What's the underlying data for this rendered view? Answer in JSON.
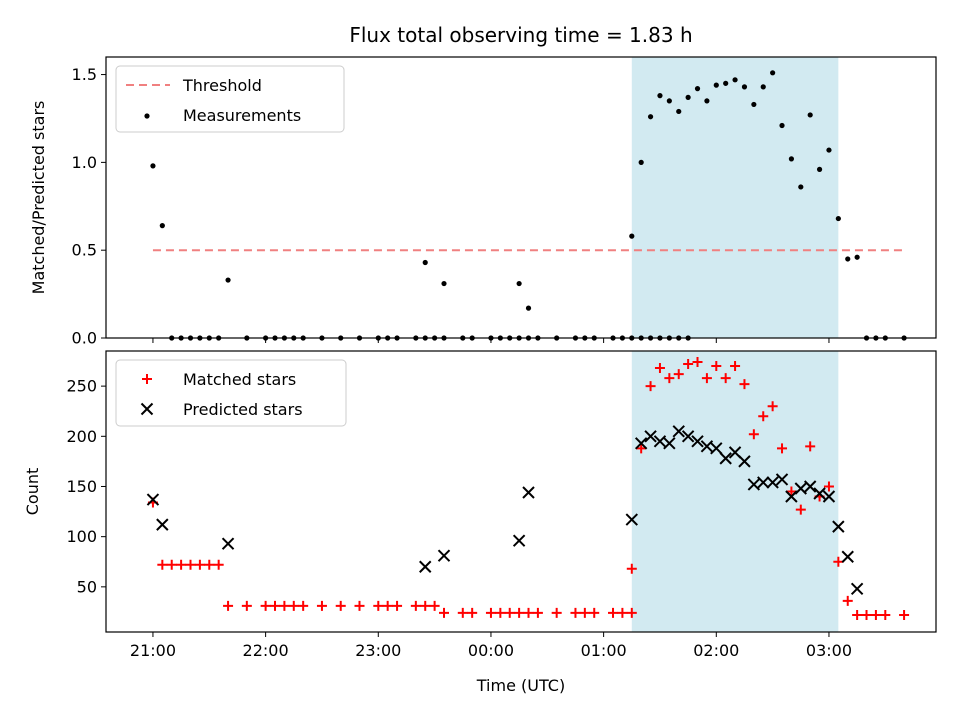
{
  "chart_data": {
    "type": "scatter",
    "title": "Flux total observing time = 1.83 h",
    "colors": {
      "threshold": "#f08080",
      "measurements": "#000000",
      "matched": "#ff0000",
      "predicted": "#000000",
      "span": "#add8e6"
    },
    "shaded_span": [
      "01:15",
      "03:05"
    ],
    "x_range": [
      "20:35",
      "03:57"
    ],
    "x_ticks": [
      "21:00",
      "22:00",
      "23:00",
      "00:00",
      "01:00",
      "02:00",
      "03:00"
    ],
    "x_axis_label": "Time (UTC)",
    "top_panel": {
      "y_axis_label": "Matched/Predicted stars",
      "y_range": [
        0,
        1.6
      ],
      "y_ticks": [
        "0.0",
        "0.5",
        "1.0",
        "1.5"
      ],
      "legend": {
        "position": "upper left",
        "entries": [
          "Threshold",
          "Measurements"
        ]
      },
      "threshold": {
        "name": "Threshold",
        "y": 0.5,
        "x_start": "21:00",
        "x_end": "03:40"
      },
      "measurements": {
        "name": "Measurements",
        "points": [
          [
            "21:00",
            0.98
          ],
          [
            "21:05",
            0.64
          ],
          [
            "21:10",
            0
          ],
          [
            "21:15",
            0
          ],
          [
            "21:20",
            0
          ],
          [
            "21:25",
            0
          ],
          [
            "21:30",
            0
          ],
          [
            "21:35",
            0
          ],
          [
            "21:40",
            0.33
          ],
          [
            "21:50",
            0
          ],
          [
            "22:00",
            0
          ],
          [
            "22:05",
            0
          ],
          [
            "22:10",
            0
          ],
          [
            "22:15",
            0
          ],
          [
            "22:20",
            0
          ],
          [
            "22:30",
            0
          ],
          [
            "22:40",
            0
          ],
          [
            "22:50",
            0
          ],
          [
            "23:00",
            0
          ],
          [
            "23:05",
            0
          ],
          [
            "23:10",
            0
          ],
          [
            "23:20",
            0
          ],
          [
            "23:25",
            0
          ],
          [
            "23:30",
            0
          ],
          [
            "23:35",
            0
          ],
          [
            "23:45",
            0
          ],
          [
            "23:50",
            0
          ],
          [
            "00:00",
            0
          ],
          [
            "00:05",
            0
          ],
          [
            "00:10",
            0
          ],
          [
            "00:15",
            0
          ],
          [
            "00:20",
            0
          ],
          [
            "00:25",
            0
          ],
          [
            "00:35",
            0
          ],
          [
            "00:45",
            0
          ],
          [
            "00:50",
            0
          ],
          [
            "00:55",
            0
          ],
          [
            "01:05",
            0
          ],
          [
            "01:10",
            0
          ],
          [
            "01:15",
            0
          ],
          [
            "01:20",
            0
          ],
          [
            "01:25",
            0
          ],
          [
            "01:30",
            0
          ],
          [
            "01:35",
            0
          ],
          [
            "01:40",
            0
          ],
          [
            "01:45",
            0
          ],
          [
            "23:25",
            0.43
          ],
          [
            "23:35",
            0.31
          ],
          [
            "00:15",
            0.31
          ],
          [
            "00:20",
            0.17
          ],
          [
            "01:15",
            0.58
          ],
          [
            "01:20",
            1.0
          ],
          [
            "01:25",
            1.26
          ],
          [
            "01:30",
            1.38
          ],
          [
            "01:35",
            1.35
          ],
          [
            "01:40",
            1.29
          ],
          [
            "01:45",
            1.37
          ],
          [
            "01:50",
            1.42
          ],
          [
            "01:55",
            1.35
          ],
          [
            "02:00",
            1.44
          ],
          [
            "02:05",
            1.45
          ],
          [
            "02:10",
            1.47
          ],
          [
            "02:15",
            1.43
          ],
          [
            "02:20",
            1.33
          ],
          [
            "02:25",
            1.43
          ],
          [
            "02:30",
            1.51
          ],
          [
            "02:35",
            1.21
          ],
          [
            "02:40",
            1.02
          ],
          [
            "02:45",
            0.86
          ],
          [
            "02:50",
            1.27
          ],
          [
            "02:55",
            0.96
          ],
          [
            "03:00",
            1.07
          ],
          [
            "03:05",
            0.68
          ],
          [
            "03:10",
            0.45
          ],
          [
            "03:15",
            0.46
          ],
          [
            "03:20",
            0
          ],
          [
            "03:25",
            0
          ],
          [
            "03:30",
            0
          ],
          [
            "03:40",
            0
          ]
        ]
      }
    },
    "bottom_panel": {
      "y_axis_label": "Count",
      "y_range": [
        5,
        285
      ],
      "y_ticks": [
        "50",
        "100",
        "150",
        "200",
        "250"
      ],
      "legend": {
        "position": "upper left",
        "entries": [
          "Matched stars",
          "Predicted stars"
        ]
      },
      "matched": {
        "name": "Matched stars",
        "points": [
          [
            "21:00",
            134
          ],
          [
            "21:05",
            72
          ],
          [
            "21:10",
            72
          ],
          [
            "21:15",
            72
          ],
          [
            "21:20",
            72
          ],
          [
            "21:25",
            72
          ],
          [
            "21:30",
            72
          ],
          [
            "21:35",
            72
          ],
          [
            "21:40",
            31
          ],
          [
            "21:50",
            31
          ],
          [
            "22:00",
            31
          ],
          [
            "22:05",
            31
          ],
          [
            "22:10",
            31
          ],
          [
            "22:15",
            31
          ],
          [
            "22:20",
            31
          ],
          [
            "22:30",
            31
          ],
          [
            "22:40",
            31
          ],
          [
            "22:50",
            31
          ],
          [
            "23:00",
            31
          ],
          [
            "23:05",
            31
          ],
          [
            "23:10",
            31
          ],
          [
            "23:20",
            31
          ],
          [
            "23:25",
            31
          ],
          [
            "23:30",
            31
          ],
          [
            "23:35",
            24
          ],
          [
            "23:45",
            24
          ],
          [
            "23:50",
            24
          ],
          [
            "00:00",
            24
          ],
          [
            "00:05",
            24
          ],
          [
            "00:10",
            24
          ],
          [
            "00:15",
            24
          ],
          [
            "00:20",
            24
          ],
          [
            "00:25",
            24
          ],
          [
            "00:35",
            24
          ],
          [
            "00:45",
            24
          ],
          [
            "00:50",
            24
          ],
          [
            "00:55",
            24
          ],
          [
            "01:05",
            24
          ],
          [
            "01:10",
            24
          ],
          [
            "01:15",
            24
          ],
          [
            "01:15",
            68
          ],
          [
            "01:20",
            188
          ],
          [
            "01:25",
            250
          ],
          [
            "01:30",
            268
          ],
          [
            "01:35",
            258
          ],
          [
            "01:40",
            262
          ],
          [
            "01:45",
            272
          ],
          [
            "01:50",
            274
          ],
          [
            "01:55",
            258
          ],
          [
            "02:00",
            270
          ],
          [
            "02:05",
            258
          ],
          [
            "02:10",
            270
          ],
          [
            "02:15",
            252
          ],
          [
            "02:20",
            202
          ],
          [
            "02:25",
            220
          ],
          [
            "02:30",
            230
          ],
          [
            "02:35",
            188
          ],
          [
            "02:40",
            145
          ],
          [
            "02:45",
            127
          ],
          [
            "02:50",
            190
          ],
          [
            "02:55",
            140
          ],
          [
            "03:00",
            150
          ],
          [
            "03:05",
            75
          ],
          [
            "03:10",
            36
          ],
          [
            "03:15",
            22
          ],
          [
            "03:20",
            22
          ],
          [
            "03:25",
            22
          ],
          [
            "03:30",
            22
          ],
          [
            "03:40",
            22
          ]
        ]
      },
      "predicted": {
        "name": "Predicted stars",
        "points": [
          [
            "21:00",
            137
          ],
          [
            "21:05",
            112
          ],
          [
            "21:40",
            93
          ],
          [
            "23:25",
            70
          ],
          [
            "23:35",
            81
          ],
          [
            "00:15",
            96
          ],
          [
            "00:20",
            144
          ],
          [
            "01:15",
            117
          ],
          [
            "01:20",
            193
          ],
          [
            "01:25",
            200
          ],
          [
            "01:30",
            195
          ],
          [
            "01:35",
            193
          ],
          [
            "01:40",
            205
          ],
          [
            "01:45",
            200
          ],
          [
            "01:50",
            195
          ],
          [
            "01:55",
            190
          ],
          [
            "02:00",
            188
          ],
          [
            "02:05",
            178
          ],
          [
            "02:10",
            184
          ],
          [
            "02:15",
            175
          ],
          [
            "02:20",
            152
          ],
          [
            "02:25",
            154
          ],
          [
            "02:30",
            154
          ],
          [
            "02:35",
            157
          ],
          [
            "02:40",
            140
          ],
          [
            "02:45",
            148
          ],
          [
            "02:50",
            150
          ],
          [
            "02:55",
            143
          ],
          [
            "03:00",
            140
          ],
          [
            "03:05",
            110
          ],
          [
            "03:10",
            80
          ],
          [
            "03:15",
            48
          ]
        ]
      }
    }
  }
}
